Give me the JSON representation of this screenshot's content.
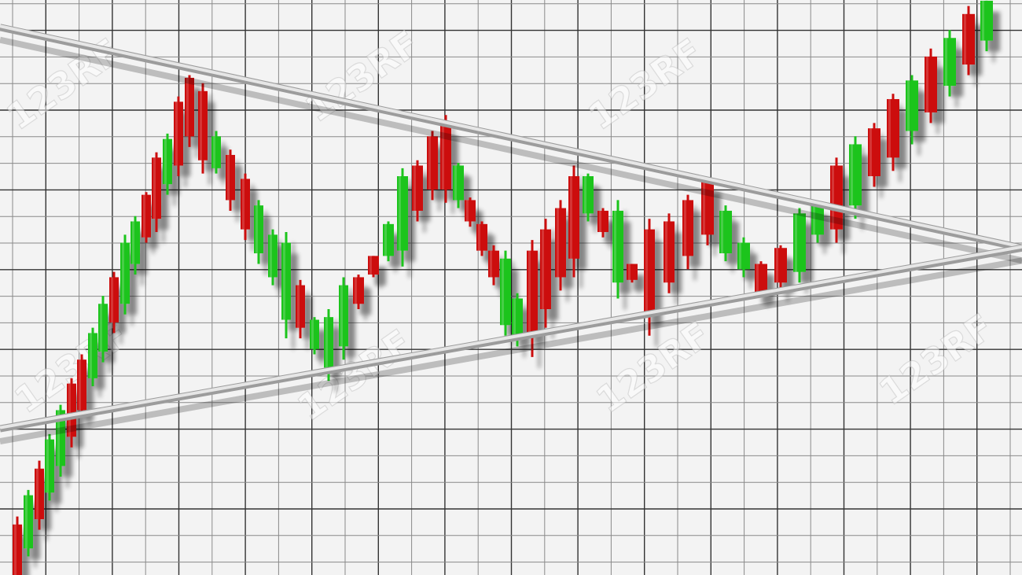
{
  "chart_data": {
    "type": "candlestick",
    "title": "",
    "xlabel": "",
    "ylabel": "",
    "grid": true,
    "axes_visible": false,
    "up_color": "#1fc41f",
    "down_color": "#cc0a0a",
    "candles": [
      {
        "o": 1.9,
        "h": 2.2,
        "l": 0.0,
        "c": 0.0
      },
      {
        "o": 1.0,
        "h": 3.2,
        "l": 0.7,
        "c": 3.0
      },
      {
        "o": 4.0,
        "h": 4.3,
        "l": 1.7,
        "c": 2.1
      },
      {
        "o": 3.1,
        "h": 5.3,
        "l": 2.8,
        "c": 5.1
      },
      {
        "o": 4.1,
        "h": 6.4,
        "l": 3.7,
        "c": 6.2
      },
      {
        "o": 7.2,
        "h": 7.4,
        "l": 4.8,
        "c": 5.2
      },
      {
        "o": 8.1,
        "h": 8.3,
        "l": 6.0,
        "c": 6.2
      },
      {
        "o": 7.4,
        "h": 9.3,
        "l": 7.1,
        "c": 9.1
      },
      {
        "o": 8.4,
        "h": 10.5,
        "l": 8.0,
        "c": 10.2
      },
      {
        "o": 11.2,
        "h": 11.4,
        "l": 9.1,
        "c": 9.5
      },
      {
        "o": 10.2,
        "h": 12.8,
        "l": 9.8,
        "c": 12.5
      },
      {
        "o": 11.7,
        "h": 13.5,
        "l": 11.3,
        "c": 13.3
      },
      {
        "o": 14.3,
        "h": 14.4,
        "l": 12.5,
        "c": 12.7
      },
      {
        "o": 15.7,
        "h": 15.9,
        "l": 12.9,
        "c": 13.4
      },
      {
        "o": 14.7,
        "h": 16.6,
        "l": 14.3,
        "c": 16.4
      },
      {
        "o": 17.8,
        "h": 18.0,
        "l": 15.0,
        "c": 15.4
      },
      {
        "o": 18.7,
        "h": 18.8,
        "l": 16.1,
        "c": 16.5
      },
      {
        "o": 18.2,
        "h": 18.5,
        "l": 15.1,
        "c": 15.6
      },
      {
        "o": 15.3,
        "h": 16.7,
        "l": 15.1,
        "c": 16.5
      },
      {
        "o": 15.8,
        "h": 16.0,
        "l": 13.7,
        "c": 14.1
      },
      {
        "o": 14.9,
        "h": 15.1,
        "l": 12.6,
        "c": 13.0
      },
      {
        "o": 12.1,
        "h": 14.1,
        "l": 11.7,
        "c": 13.9
      },
      {
        "o": 11.2,
        "h": 13.0,
        "l": 10.9,
        "c": 12.8
      },
      {
        "o": 9.6,
        "h": 12.9,
        "l": 8.9,
        "c": 12.5
      },
      {
        "o": 10.9,
        "h": 11.1,
        "l": 8.9,
        "c": 9.3
      },
      {
        "o": 8.5,
        "h": 9.7,
        "l": 8.3,
        "c": 9.6
      },
      {
        "o": 7.8,
        "h": 10.0,
        "l": 7.3,
        "c": 9.7
      },
      {
        "o": 8.6,
        "h": 11.2,
        "l": 8.1,
        "c": 10.9
      },
      {
        "o": 11.2,
        "h": 11.3,
        "l": 10.0,
        "c": 10.2
      },
      {
        "o": 12.0,
        "h": 12.0,
        "l": 11.2,
        "c": 11.3
      },
      {
        "o": 12.0,
        "h": 13.3,
        "l": 11.8,
        "c": 13.2
      },
      {
        "o": 12.2,
        "h": 15.3,
        "l": 11.6,
        "c": 15.0
      },
      {
        "o": 15.4,
        "h": 15.6,
        "l": 13.3,
        "c": 13.7
      },
      {
        "o": 16.5,
        "h": 16.7,
        "l": 14.1,
        "c": 14.5
      },
      {
        "o": 16.9,
        "h": 17.3,
        "l": 14.0,
        "c": 14.5
      },
      {
        "o": 14.1,
        "h": 15.5,
        "l": 13.8,
        "c": 15.4
      },
      {
        "o": 14.1,
        "h": 14.2,
        "l": 13.1,
        "c": 13.3
      },
      {
        "o": 13.2,
        "h": 13.3,
        "l": 12.0,
        "c": 12.2
      },
      {
        "o": 12.2,
        "h": 12.4,
        "l": 10.9,
        "c": 11.2
      },
      {
        "o": 9.4,
        "h": 12.2,
        "l": 9.0,
        "c": 11.9
      },
      {
        "o": 9.0,
        "h": 10.6,
        "l": 8.6,
        "c": 10.4
      },
      {
        "o": 12.2,
        "h": 12.6,
        "l": 8.2,
        "c": 9.1
      },
      {
        "o": 13.0,
        "h": 13.4,
        "l": 9.3,
        "c": 10.0
      },
      {
        "o": 13.8,
        "h": 14.1,
        "l": 10.7,
        "c": 11.2
      },
      {
        "o": 15.0,
        "h": 15.4,
        "l": 11.2,
        "c": 11.9
      },
      {
        "o": 13.6,
        "h": 15.1,
        "l": 13.3,
        "c": 15.0
      },
      {
        "o": 13.7,
        "h": 13.8,
        "l": 12.7,
        "c": 12.9
      },
      {
        "o": 11.0,
        "h": 14.1,
        "l": 10.4,
        "c": 13.7
      },
      {
        "o": 11.7,
        "h": 11.7,
        "l": 11.0,
        "c": 11.1
      },
      {
        "o": 13.0,
        "h": 13.4,
        "l": 9.0,
        "c": 9.8
      },
      {
        "o": 13.3,
        "h": 13.6,
        "l": 10.6,
        "c": 11.0
      },
      {
        "o": 14.1,
        "h": 14.3,
        "l": 11.5,
        "c": 12.0
      },
      {
        "o": 14.8,
        "h": 14.8,
        "l": 12.4,
        "c": 12.8
      },
      {
        "o": 12.1,
        "h": 13.9,
        "l": 11.8,
        "c": 13.7
      },
      {
        "o": 11.5,
        "h": 12.7,
        "l": 11.2,
        "c": 12.5
      },
      {
        "o": 11.7,
        "h": 11.8,
        "l": 10.5,
        "c": 10.6
      },
      {
        "o": 12.3,
        "h": 12.4,
        "l": 10.7,
        "c": 11.0
      },
      {
        "o": 11.4,
        "h": 13.8,
        "l": 11.0,
        "c": 13.6
      },
      {
        "o": 12.8,
        "h": 14.0,
        "l": 12.5,
        "c": 13.9
      },
      {
        "o": 15.4,
        "h": 15.7,
        "l": 12.5,
        "c": 13.0
      },
      {
        "o": 13.9,
        "h": 16.5,
        "l": 13.4,
        "c": 16.2
      },
      {
        "o": 16.8,
        "h": 17.0,
        "l": 14.6,
        "c": 15.0
      },
      {
        "o": 17.9,
        "h": 18.1,
        "l": 15.2,
        "c": 15.7
      },
      {
        "o": 16.7,
        "h": 18.8,
        "l": 16.2,
        "c": 18.6
      },
      {
        "o": 19.5,
        "h": 19.8,
        "l": 17.0,
        "c": 17.4
      },
      {
        "o": 18.4,
        "h": 20.5,
        "l": 18.0,
        "c": 20.2
      },
      {
        "o": 21.1,
        "h": 21.4,
        "l": 18.8,
        "c": 19.2
      },
      {
        "o": 20.1,
        "h": 21.6,
        "l": 19.7,
        "c": 21.6
      }
    ],
    "trendlines": [
      {
        "kind": "resistance",
        "start_value": 20.6,
        "end_value": 12.3
      },
      {
        "kind": "support",
        "start_value": 5.5,
        "end_value": 12.3
      }
    ],
    "pattern": "symmetrical triangle breakout"
  },
  "watermark": {
    "text": "123RF"
  }
}
